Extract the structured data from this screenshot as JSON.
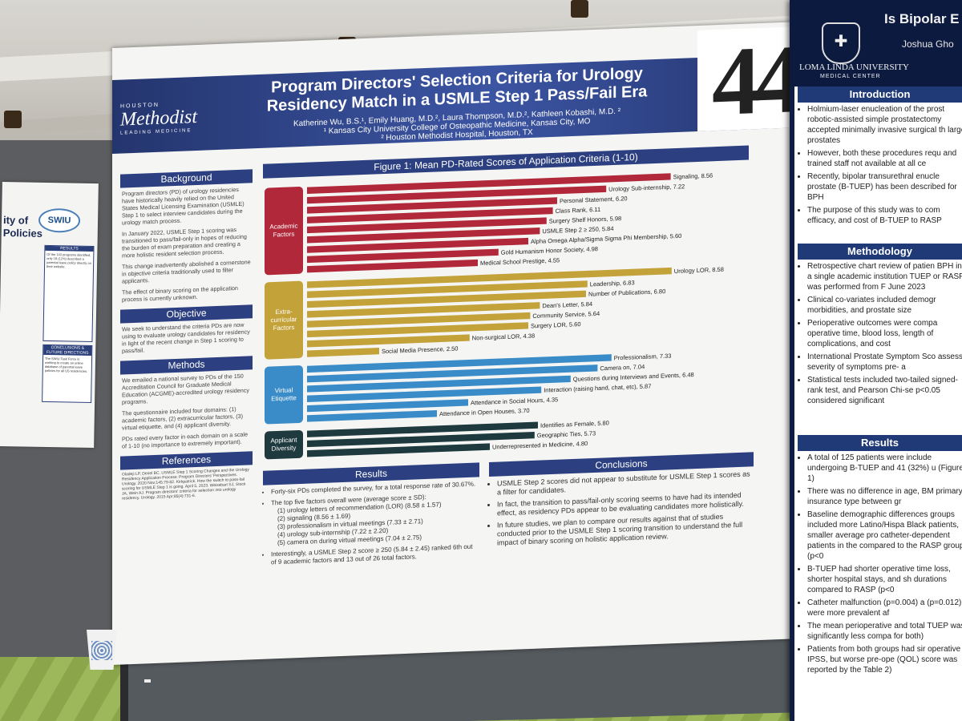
{
  "left_poster": {
    "title_a": "ity of",
    "title_b": "Policies",
    "logo": "SWIU",
    "box1_header": "RESULTS",
    "box1_text": "Of the 143 programs identified, only 18 (12%) described a parental leave policy directly on their website.",
    "box2_header": "CONCLUSIONS & FUTURE DIRECTIONS",
    "box2_text": "The SWIU Task Force is working to create an online database of parental leave policies for all US residencies."
  },
  "right_poster": {
    "title": "Is Bipolar E",
    "author": "Joshua Gho",
    "university": "LOMA LINDA UNIVERSITY",
    "university_sub": "MEDICAL CENTER",
    "intro_header": "Introduction",
    "intro_items": [
      "Holmium-laser enucleation of the prost robotic-assisted simple prostatectomy accepted minimally invasive surgical th large prostates",
      "However, both these procedures requ and trained staff not available at all ce",
      "Recently, bipolar transurethral enucle prostate (B-TUEP) has been described for BPH",
      "The purpose of this study was to com efficacy, and cost of B-TUEP to RASP"
    ],
    "method_header": "Methodology",
    "method_items": [
      "Retrospective chart review of patien BPH in a single academic institution TUEP or RASP was performed from F June 2023",
      "Clinical co-variates included demogr morbidities, and prostate size",
      "Perioperative outcomes were compa operative time, blood loss, length of complications, and cost",
      "International Prostate Symptom Sco assess severity of symptoms pre- a",
      "Statistical tests included two-tailed signed-rank test, and Pearson Chi-se p<0.05 considered significant"
    ],
    "results_header": "Results",
    "results_items": [
      "A total of 125 patients were include undergoing B-TUEP and 41 (32%) u (Figure 1)",
      "There was no difference in age, BM primary insurance type between gr",
      "Baseline demographic differences groups included more Latino/Hispa Black patients, smaller average pro catheter-dependent patients in the compared to the RASP group (p<0",
      "B-TUEP had shorter operative time loss, shorter hospital stays, and sh durations compared to RASP (p<0",
      "Catheter malfunction (p=0.004) a (p=0.012) were more prevalent af",
      "The mean perioperative and total TUEP was significantly less compa for both)",
      "Patients from both groups had sir operative IPSS, but worse pre-ope (QOL) score was reported by the Table 2)"
    ]
  },
  "poster": {
    "logo_a": "HOUSTON",
    "logo_b": "Methodist",
    "logo_c": "LEADING MEDICINE",
    "title": "Program Directors' Selection Criteria for Urology Residency Match in a USMLE Step 1 Pass/Fail Era",
    "authors": "Katherine Wu, B.S.¹, Emily Huang, M.D.², Laura Thompson, M.D.², Kathleen Kobashi, M.D. ²",
    "affil1": "¹ Kansas City University College of Osteopathic Medicine, Kansas City, MO",
    "affil2": "² Houston Methodist Hospital, Houston, TX",
    "board_number": "44",
    "background": {
      "header": "Background",
      "paragraphs": [
        "Program directors (PD) of urology residencies have historically heavily relied on the United States Medical Licensing Examination (USMLE) Step 1 to select interview candidates during the urology match process.",
        "In January 2022, USMLE Step 1 scoring was transitioned to pass/fail-only in hopes of reducing the burden of exam preparation and creating a more holistic resident selection process.",
        "This change inadvertently abolished a cornerstone in objective criteria traditionally used to filter applicants.",
        "The effect of binary scoring on the application process is currently unknown."
      ]
    },
    "objective": {
      "header": "Objective",
      "text": "We seek to understand the criteria PDs are now using to evaluate urology candidates for residency in light of the recent change in Step 1 scoring to pass/fail."
    },
    "methods": {
      "header": "Methods",
      "paragraphs": [
        "We emailed a national survey to PDs of the 150 Accreditation Council for Graduate Medical Education (ACGME)-accredited urology residency programs.",
        "The questionnaire included four domains: (1) academic factors, (2) extracurricular factors, (3) virtual etiquette, and (4) applicant diversity.",
        "PDs rated every factor in each domain on a scale of 1-10 (no importance to extremely important)."
      ]
    },
    "references": {
      "header": "References",
      "text": "Oladeji LP, Deriel BC. USMLE Step 1 Scoring Changes and the Urology Residency Application Process: Program Directors' Perspectives. Urology. 2020 Nov;145:79-82. Kirkpatrick. How the switch to pass-fail scoring for USMLE Step 1 is going. April 5, 2023. Weissbart SJ, Stock JA, Wein AJ. Program directors' criteria for selection into urology residency. Urology. 2015 Apr;85(4):731-6."
    },
    "results": {
      "header": "Results",
      "items": [
        "Forty-six PDs completed the survey, for a total response rate of 30.67%.",
        "The top five factors overall were (average score ± SD):",
        "Interestingly, a USMLE Step 2 score ≥ 250 (5.84 ± 2.45) ranked 6th out of 9 academic factors and 13 out of 26 total factors."
      ],
      "top_five": [
        "(1) urology letters of recommendation (LOR) (8.58 ± 1.57)",
        "(2) signaling (8.56 ± 1.69)",
        "(3) professionalism in virtual meetings (7.33 ± 2.71)",
        "(4) urology sub-internship (7.22 ± 2.20)",
        "(5) camera on during virtual meetings (7.04 ± 2.75)"
      ]
    },
    "conclusions": {
      "header": "Conclusions",
      "items": [
        "USMLE Step 2 scores did not appear to substitute for USMLE Step 1 scores as a filter for candidates.",
        "In fact, the transition to pass/fail-only scoring seems to have had its intended effect, as residency PDs appear to be evaluating candidates more holistically.",
        "In future studies, we plan to compare our results against that of studies conducted prior to the USMLE Step 1 scoring transition to understand the full impact of binary scoring on holistic application review."
      ]
    }
  },
  "chart_data": {
    "type": "bar",
    "orientation": "horizontal",
    "title": "Figure 1: Mean PD-Rated Scores of Application Criteria (1-10)",
    "xlim": [
      1,
      10
    ],
    "xticks": [
      "1.00",
      "2.00",
      "3.00",
      "4.00",
      "5.00",
      "6.00",
      "7.00",
      "8.00",
      "9.00",
      "10.00"
    ],
    "groups": [
      {
        "name": "Academic Factors",
        "color": "#b0283a",
        "items": [
          {
            "label": "Signaling",
            "value": 8.56
          },
          {
            "label": "Urology Sub-internship",
            "value": 7.22
          },
          {
            "label": "Personal Statement",
            "value": 6.2
          },
          {
            "label": "Class Rank",
            "value": 6.11
          },
          {
            "label": "Surgery Shelf Honors",
            "value": 5.98
          },
          {
            "label": "USMLE Step 2 ≥ 250",
            "value": 5.84
          },
          {
            "label": "Alpha Omega Alpha/Sigma Sigma Phi Membership",
            "value": 5.6
          },
          {
            "label": "Gold Humanism Honor Society",
            "value": 4.98
          },
          {
            "label": "Medical School Prestige",
            "value": 4.55
          }
        ]
      },
      {
        "name": "Extra-curricular Factors",
        "color": "#c4a23a",
        "items": [
          {
            "label": "Urology LOR",
            "value": 8.58
          },
          {
            "label": "Leadership",
            "value": 6.83
          },
          {
            "label": "Number of Publications",
            "value": 6.8
          },
          {
            "label": "Dean's Letter",
            "value": 5.84
          },
          {
            "label": "Community Service",
            "value": 5.64
          },
          {
            "label": "Surgery LOR",
            "value": 5.6
          },
          {
            "label": "Non-surgical LOR",
            "value": 4.38
          },
          {
            "label": "Social Media Presence",
            "value": 2.5
          }
        ]
      },
      {
        "name": "Virtual Etiquette",
        "color": "#3a8cc8",
        "items": [
          {
            "label": "Professionalism",
            "value": 7.33
          },
          {
            "label": "Camera on",
            "value": 7.04
          },
          {
            "label": "Questions during Interviews and Events",
            "value": 6.48
          },
          {
            "label": "Interaction (raising hand, chat, etc)",
            "value": 5.87
          },
          {
            "label": "Attendance in Social Hours",
            "value": 4.35
          },
          {
            "label": "Attendance in Open Houses",
            "value": 3.7
          }
        ]
      },
      {
        "name": "Applicant Diversity",
        "color": "#1f3a3f",
        "items": [
          {
            "label": "Identifies as Female",
            "value": 5.8
          },
          {
            "label": "Geographic Ties",
            "value": 5.73
          },
          {
            "label": "Underrepresented in Medicine",
            "value": 4.8
          }
        ]
      }
    ]
  }
}
